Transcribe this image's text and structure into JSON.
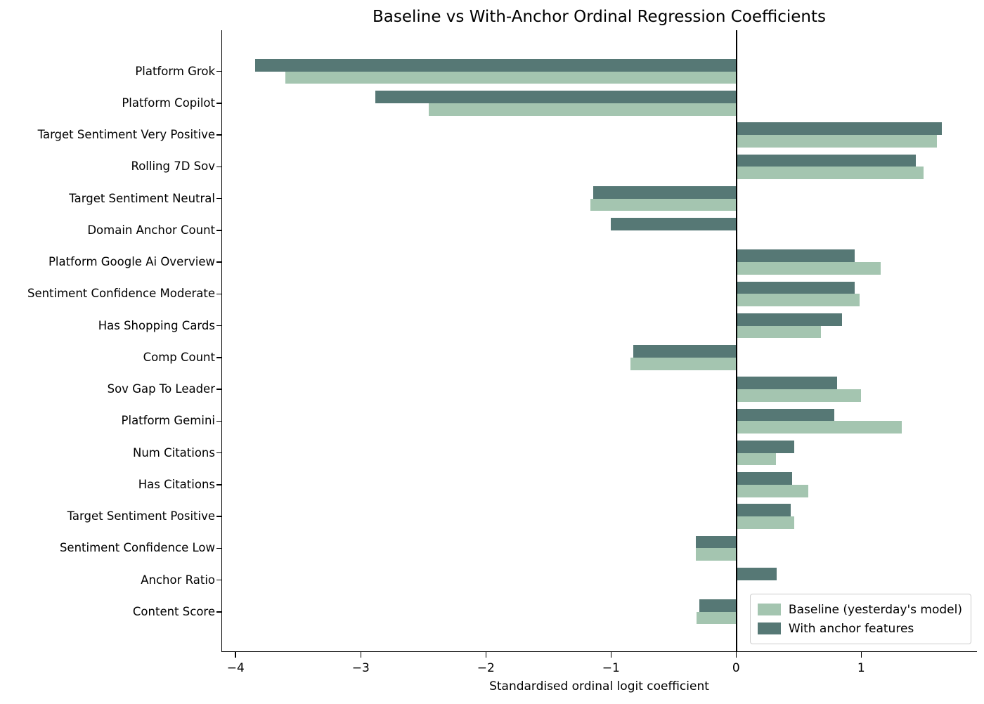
{
  "figure": {
    "title": "Baseline vs With-Anchor Ordinal Regression Coefficients",
    "xlabel": "Standardised ordinal logit coefficient"
  },
  "chart_data": {
    "type": "bar",
    "orientation": "horizontal",
    "title": "Baseline vs With-Anchor Ordinal Regression Coefficients",
    "xlabel": "Standardised ordinal logit coefficient",
    "ylabel": "",
    "grid": false,
    "legend_position": "lower right",
    "xlim": [
      -4.114,
      1.925
    ],
    "xticks": [
      -4,
      -3,
      -2,
      -1,
      0,
      1
    ],
    "categories": [
      "Platform Grok",
      "Platform Copilot",
      "Target Sentiment Very Positive",
      "Rolling 7D Sov",
      "Target Sentiment Neutral",
      "Domain Anchor Count",
      "Platform Google Ai Overview",
      "Sentiment Confidence Moderate",
      "Has Shopping Cards",
      "Comp Count",
      "Sov Gap To Leader",
      "Platform Gemini",
      "Num Citations",
      "Has Citations",
      "Target Sentiment Positive",
      "Sentiment Confidence Low",
      "Anchor Ratio",
      "Content Score"
    ],
    "series": [
      {
        "name": "Baseline (yesterday's model)",
        "color": "#a4c5b0",
        "values": [
          -3.61,
          -2.46,
          1.6,
          1.49,
          -1.17,
          0,
          1.15,
          0.98,
          0.67,
          -0.85,
          0.99,
          1.32,
          0.31,
          0.57,
          0.46,
          -0.33,
          0,
          -0.32
        ]
      },
      {
        "name": "With anchor features",
        "color": "#567875",
        "values": [
          -3.85,
          -2.89,
          1.64,
          1.43,
          -1.15,
          -1.01,
          0.94,
          0.94,
          0.84,
          -0.83,
          0.8,
          0.78,
          0.46,
          0.44,
          0.43,
          -0.33,
          0.32,
          -0.3
        ]
      }
    ]
  }
}
